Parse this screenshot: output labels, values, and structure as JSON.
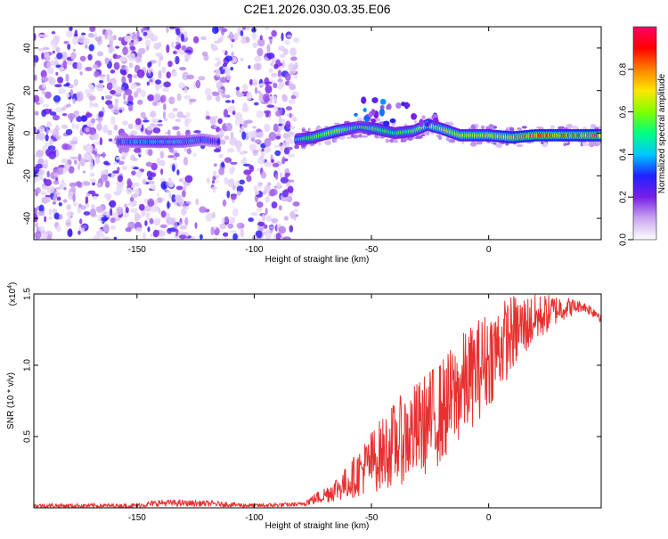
{
  "title": "C2E1.2026.030.03.35.E06",
  "chart_data": [
    {
      "type": "heatmap",
      "xlabel": "Height of straight line (km)",
      "ylabel": "Frequency (Hz)",
      "xlim": [
        -194,
        48
      ],
      "ylim": [
        -50,
        50
      ],
      "xticks": [
        -150,
        -100,
        -50,
        0
      ],
      "xtick_labels": [
        "-150",
        "-100",
        "-50",
        "0"
      ],
      "yticks": [
        -40,
        -20,
        0,
        20,
        40
      ],
      "ytick_labels": [
        "-40",
        "-20",
        "0",
        "20",
        "40"
      ],
      "colorbar": {
        "label": "Normalized spectral amplitude",
        "range": [
          0,
          1
        ],
        "ticks": [
          0.0,
          0.2,
          0.4,
          0.6,
          0.8
        ],
        "tick_labels": [
          "0.0",
          "0.2",
          "0.4",
          "0.6",
          "0.8"
        ],
        "colors": [
          "#ffffff",
          "#c9a6f0",
          "#7a1fe6",
          "#1e22ff",
          "#00c8ff",
          "#00ff80",
          "#80ff00",
          "#ffe600",
          "#ff8000",
          "#ff0000",
          "#ff0066"
        ]
      },
      "ridge": {
        "x": [
          -158,
          -150,
          -140,
          -130,
          -122,
          -115,
          -82,
          -75,
          -65,
          -55,
          -48,
          -40,
          -32,
          -26,
          -20,
          -12,
          0,
          10,
          20,
          30,
          48
        ],
        "freq": [
          -4,
          -4,
          -4,
          -4,
          -3,
          -4,
          -3,
          -2,
          1,
          3,
          2,
          0,
          1,
          4,
          2,
          -1,
          -1,
          -2,
          -1,
          -1,
          -1
        ],
        "amplitude": [
          0.35,
          0.4,
          0.45,
          0.4,
          0.35,
          0.3,
          0.5,
          0.6,
          0.7,
          0.5,
          0.6,
          0.55,
          0.6,
          0.7,
          0.65,
          0.7,
          0.75,
          0.8,
          0.85,
          0.85,
          0.85
        ]
      },
      "noise_region": [
        -194,
        -82
      ],
      "grid": false
    },
    {
      "type": "line",
      "xlabel": "Height of straight line (km)",
      "ylabel": "SNR (10 * v/v)",
      "yscale_label": "(x10",
      "yscale_exp": "4",
      "yscale_close": ")",
      "xlim": [
        -194,
        48
      ],
      "ylim": [
        0,
        1.5
      ],
      "xticks": [
        -150,
        -100,
        -50,
        0
      ],
      "xtick_labels": [
        "-150",
        "-100",
        "-50",
        "0"
      ],
      "yticks": [
        0.5,
        1.0,
        1.5
      ],
      "ytick_labels": [
        "0.5",
        "1.0",
        "1.5"
      ],
      "color": "#e83030",
      "envelope": {
        "x": [
          -194,
          -150,
          -140,
          -120,
          -100,
          -80,
          -70,
          -60,
          -50,
          -40,
          -30,
          -20,
          -10,
          0,
          10,
          20,
          30,
          40,
          48
        ],
        "lower": [
          0.0,
          0.0,
          0.01,
          0.01,
          0.0,
          0.01,
          0.03,
          0.06,
          0.1,
          0.15,
          0.2,
          0.3,
          0.5,
          0.7,
          0.95,
          1.15,
          1.3,
          1.38,
          1.3
        ],
        "upper": [
          0.03,
          0.03,
          0.06,
          0.05,
          0.03,
          0.04,
          0.15,
          0.3,
          0.55,
          0.75,
          0.9,
          1.05,
          1.25,
          1.4,
          1.5,
          1.5,
          1.5,
          1.45,
          1.4
        ]
      },
      "grid": false
    }
  ]
}
